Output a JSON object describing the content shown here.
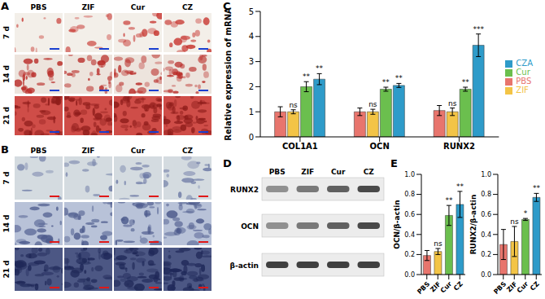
{
  "figure": {
    "panel_labels": [
      "A",
      "B",
      "C",
      "D",
      "E"
    ],
    "A": {
      "columns": [
        "PBS",
        "ZIF",
        "Cur",
        "CZ"
      ],
      "rows": [
        "7 d",
        "14 d",
        "21 d"
      ]
    },
    "B": {
      "columns": [
        "PBS",
        "ZIF",
        "Cur",
        "CZ"
      ],
      "rows": [
        "7 d",
        "14 d",
        "21 d"
      ]
    },
    "D": {
      "columns": [
        "PBS",
        "ZIF",
        "Cur",
        "CZ"
      ],
      "rows": [
        "RUNX2",
        "OCN",
        "β-actin"
      ]
    }
  },
  "chart_data": [
    {
      "type": "bar",
      "y_label": "Relative expression of mRNA",
      "categories": [
        "COL1A1",
        "OCN",
        "RUNX2"
      ],
      "series": [
        {
          "name": "PBS",
          "color": "#e8756d",
          "values": [
            1.0,
            1.0,
            1.05
          ],
          "errors": [
            0.2,
            0.15,
            0.2
          ]
        },
        {
          "name": "ZIF",
          "color": "#f3c446",
          "values": [
            1.0,
            1.0,
            1.0
          ],
          "errors": [
            0.08,
            0.1,
            0.15
          ],
          "annotations": [
            "ns",
            "ns",
            "ns"
          ]
        },
        {
          "name": "Cur",
          "color": "#6bbf4e",
          "values": [
            2.0,
            1.9,
            1.9
          ],
          "errors": [
            0.2,
            0.08,
            0.08
          ],
          "annotations": [
            "**",
            "**",
            "**"
          ]
        },
        {
          "name": "CZA",
          "color": "#2e9bc9",
          "values": [
            2.3,
            2.05,
            3.65
          ],
          "errors": [
            0.22,
            0.08,
            0.45
          ],
          "annotations": [
            "**",
            "**",
            "***"
          ]
        }
      ],
      "ylim": [
        0,
        5
      ],
      "yticks": [
        0,
        1,
        2,
        3,
        4,
        5
      ],
      "legend": "right",
      "grid": false
    },
    {
      "type": "bar",
      "y_label": "OCN/β-actin",
      "categories": [
        "PBS",
        "ZIF",
        "Cur",
        "CZ"
      ],
      "values": [
        0.19,
        0.23,
        0.59,
        0.7
      ],
      "errors": [
        0.05,
        0.03,
        0.1,
        0.13
      ],
      "annotations": [
        null,
        "ns",
        "**",
        "**"
      ],
      "colors": [
        "#e8756d",
        "#f3c446",
        "#6bbf4e",
        "#2e9bc9"
      ],
      "ylim": [
        0,
        1
      ],
      "yticks": [
        {
          "value": 0,
          "label": "0.0"
        },
        0.2,
        0.4,
        0.6,
        0.8,
        {
          "value": 1,
          "label": "1.0"
        }
      ],
      "grid": false
    },
    {
      "type": "bar",
      "y_label": "RUNX2/β-actin",
      "categories": [
        "PBS",
        "ZIF",
        "Cur",
        "CZ"
      ],
      "values": [
        0.3,
        0.33,
        0.55,
        0.77
      ],
      "errors": [
        0.15,
        0.15,
        0.01,
        0.04
      ],
      "annotations": [
        null,
        "ns",
        "*",
        "**"
      ],
      "colors": [
        "#e8756d",
        "#f3c446",
        "#6bbf4e",
        "#2e9bc9"
      ],
      "ylim": [
        0,
        1
      ],
      "yticks": [
        {
          "value": 0,
          "label": "0.0"
        },
        0.2,
        0.4,
        0.6,
        0.8,
        {
          "value": 1,
          "label": "1.0"
        }
      ],
      "grid": false
    }
  ]
}
